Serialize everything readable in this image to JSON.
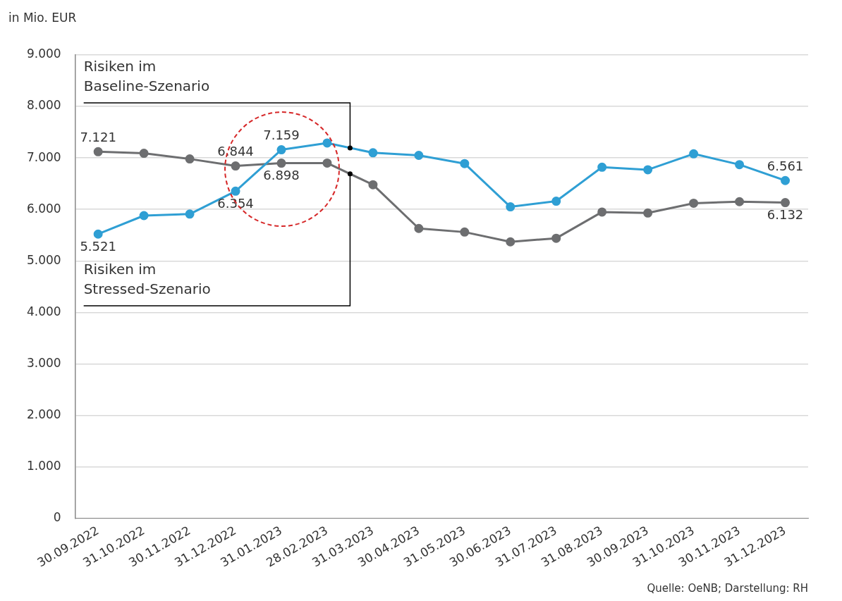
{
  "chart_data": {
    "type": "line",
    "ylabel": "in Mio. EUR",
    "categories": [
      "30.09.2022",
      "31.10.2022",
      "30.11.2022",
      "31.12.2022",
      "31.01.2023",
      "28.02.2023",
      "31.03.2023",
      "30.04.2023",
      "31.05.2023",
      "30.06.2023",
      "31.07.2023",
      "31.08.2023",
      "30.09.2023",
      "31.10.2023",
      "30.11.2023",
      "31.12.2023"
    ],
    "series": [
      {
        "name": "Risiken im Baseline-Szenario",
        "color": "#2f9fd4",
        "values": [
          5521,
          5880,
          5910,
          6354,
          7159,
          7290,
          7100,
          7050,
          6890,
          6050,
          6160,
          6820,
          6770,
          7080,
          6870,
          6561
        ],
        "value_labels": [
          "5.521",
          null,
          null,
          "6.354",
          "7.159",
          null,
          null,
          null,
          null,
          null,
          null,
          null,
          null,
          null,
          null,
          "6.561"
        ]
      },
      {
        "name": "Risiken im Stressed-Szenario",
        "color": "#6d6e70",
        "values": [
          7121,
          7090,
          6980,
          6844,
          6898,
          6900,
          6480,
          5630,
          5560,
          5370,
          5440,
          5950,
          5930,
          6120,
          6150,
          6132
        ],
        "value_labels": [
          "7.121",
          null,
          null,
          "6.844",
          "6.898",
          null,
          null,
          null,
          null,
          null,
          null,
          null,
          null,
          null,
          null,
          "6.132"
        ]
      }
    ],
    "ylim": [
      0,
      9000
    ],
    "yticks": [
      {
        "value": 0,
        "label": "0"
      },
      {
        "value": 1000,
        "label": "1.000"
      },
      {
        "value": 2000,
        "label": "2.000"
      },
      {
        "value": 3000,
        "label": "3.000"
      },
      {
        "value": 4000,
        "label": "4.000"
      },
      {
        "value": 5000,
        "label": "5.000"
      },
      {
        "value": 6000,
        "label": "6.000"
      },
      {
        "value": 7000,
        "label": "7.000"
      },
      {
        "value": 8000,
        "label": "8.000"
      },
      {
        "value": 9000,
        "label": "9.000"
      }
    ],
    "grid": "y",
    "legend": false,
    "marker": "circle",
    "line_style": "solid",
    "annotations": [
      "Quelle: OeNB; Darstellung: RH"
    ]
  }
}
